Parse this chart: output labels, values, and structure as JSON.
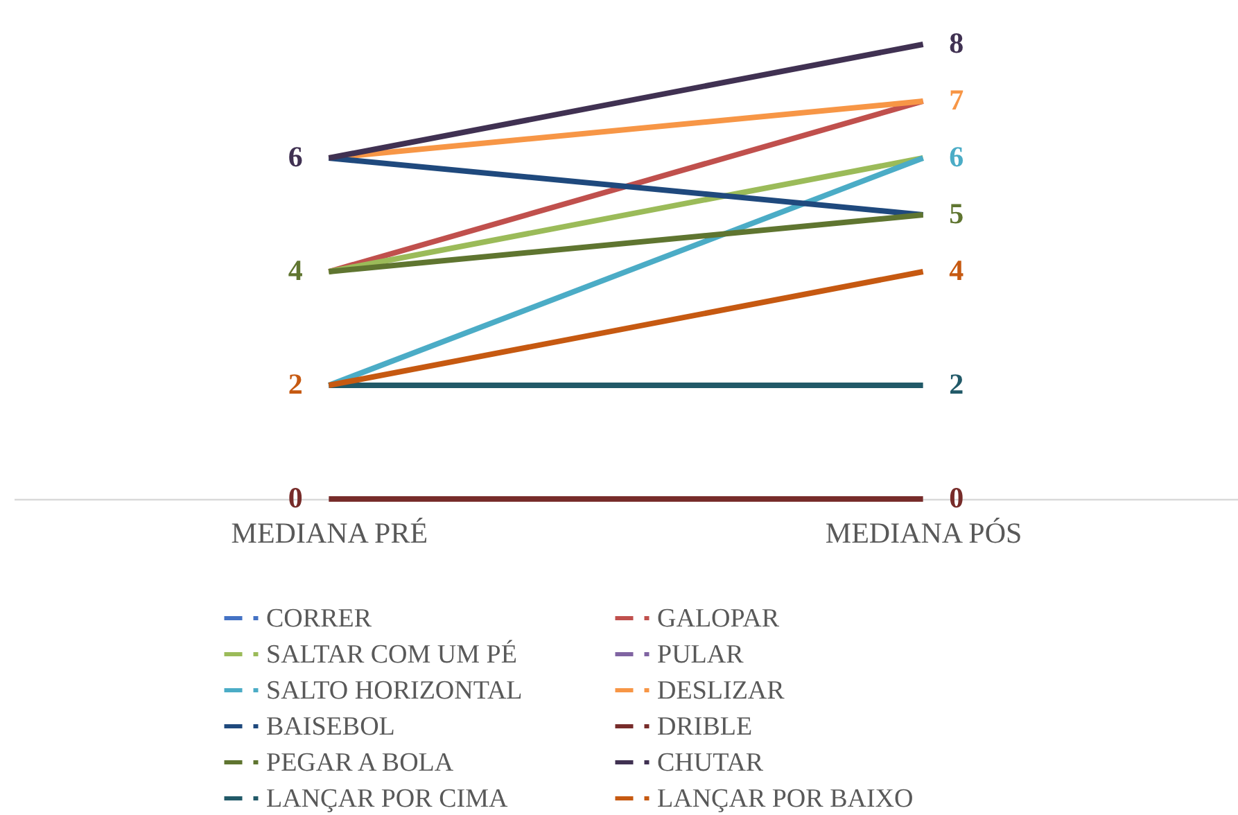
{
  "chart_data": {
    "type": "line",
    "categories": [
      "MEDIANA PRÉ",
      "MEDIANA PÓS"
    ],
    "legend": "bottom",
    "grid": false,
    "marker": "none",
    "series": [
      {
        "name": "CORRER",
        "color": "#4472c4",
        "values": [
          null,
          null
        ],
        "value_labels": [
          null,
          null
        ]
      },
      {
        "name": "GALOPAR",
        "color": "#c0504d",
        "values": [
          4,
          7
        ],
        "value_labels": [
          null,
          null
        ]
      },
      {
        "name": "SALTAR COM UM PÉ",
        "color": "#9bbb59",
        "values": [
          4,
          6
        ],
        "value_labels": [
          null,
          null
        ]
      },
      {
        "name": "PULAR",
        "color": "#8064a2",
        "values": [
          null,
          null
        ],
        "value_labels": [
          null,
          null
        ]
      },
      {
        "name": "SALTO HORIZONTAL",
        "color": "#4bacc6",
        "values": [
          2,
          6
        ],
        "value_labels": [
          null,
          "6"
        ]
      },
      {
        "name": "DESLIZAR",
        "color": "#f79646",
        "values": [
          6,
          7
        ],
        "value_labels": [
          null,
          "7"
        ]
      },
      {
        "name": "BAISEBOL",
        "color": "#1f497d",
        "values": [
          6,
          5
        ],
        "value_labels": [
          null,
          null
        ]
      },
      {
        "name": "DRIBLE",
        "color": "#772c2a",
        "values": [
          0,
          0
        ],
        "value_labels": [
          "0",
          "0"
        ]
      },
      {
        "name": "PEGAR A BOLA",
        "color": "#5f7530",
        "values": [
          4,
          5
        ],
        "value_labels": [
          "4",
          "5"
        ]
      },
      {
        "name": "CHUTAR",
        "color": "#403152",
        "values": [
          6,
          8
        ],
        "value_labels": [
          "6",
          "8"
        ]
      },
      {
        "name": "LANÇAR POR CIMA",
        "color": "#215968",
        "values": [
          2,
          2
        ],
        "value_labels": [
          null,
          "2"
        ]
      },
      {
        "name": "LANÇAR POR BAIXO",
        "color": "#c65911",
        "values": [
          2,
          4
        ],
        "value_labels": [
          "2",
          "4"
        ]
      }
    ]
  }
}
